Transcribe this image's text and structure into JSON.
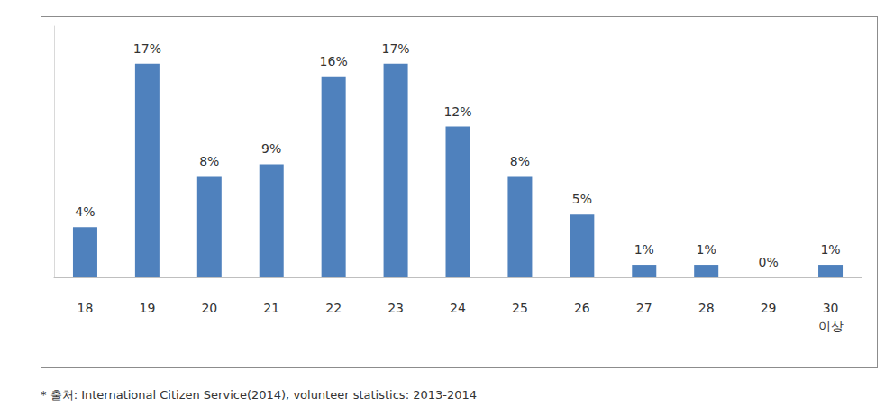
{
  "chart_data": {
    "type": "bar",
    "categories": [
      "18",
      "19",
      "20",
      "21",
      "22",
      "23",
      "24",
      "25",
      "26",
      "27",
      "28",
      "29",
      "30\n이상"
    ],
    "values": [
      4,
      17,
      8,
      9,
      16,
      17,
      12,
      8,
      5,
      1,
      1,
      0,
      1
    ],
    "value_labels": [
      "4%",
      "17%",
      "8%",
      "9%",
      "16%",
      "17%",
      "12%",
      "8%",
      "5%",
      "1%",
      "1%",
      "0%",
      "1%"
    ],
    "data_labels": true,
    "color": "#4f81bd",
    "ylim": [
      0,
      20
    ],
    "grid": false,
    "tick_labels": "x",
    "caption": "* 출처: International Citizen Service(2014), volunteer statistics: 2013-2014"
  }
}
